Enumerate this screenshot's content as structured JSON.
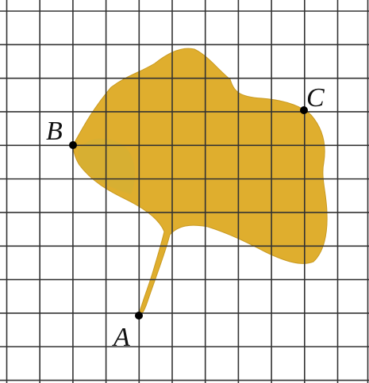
{
  "points": [
    {
      "label": "A"
    },
    {
      "label": "B"
    },
    {
      "label": "C"
    }
  ]
}
